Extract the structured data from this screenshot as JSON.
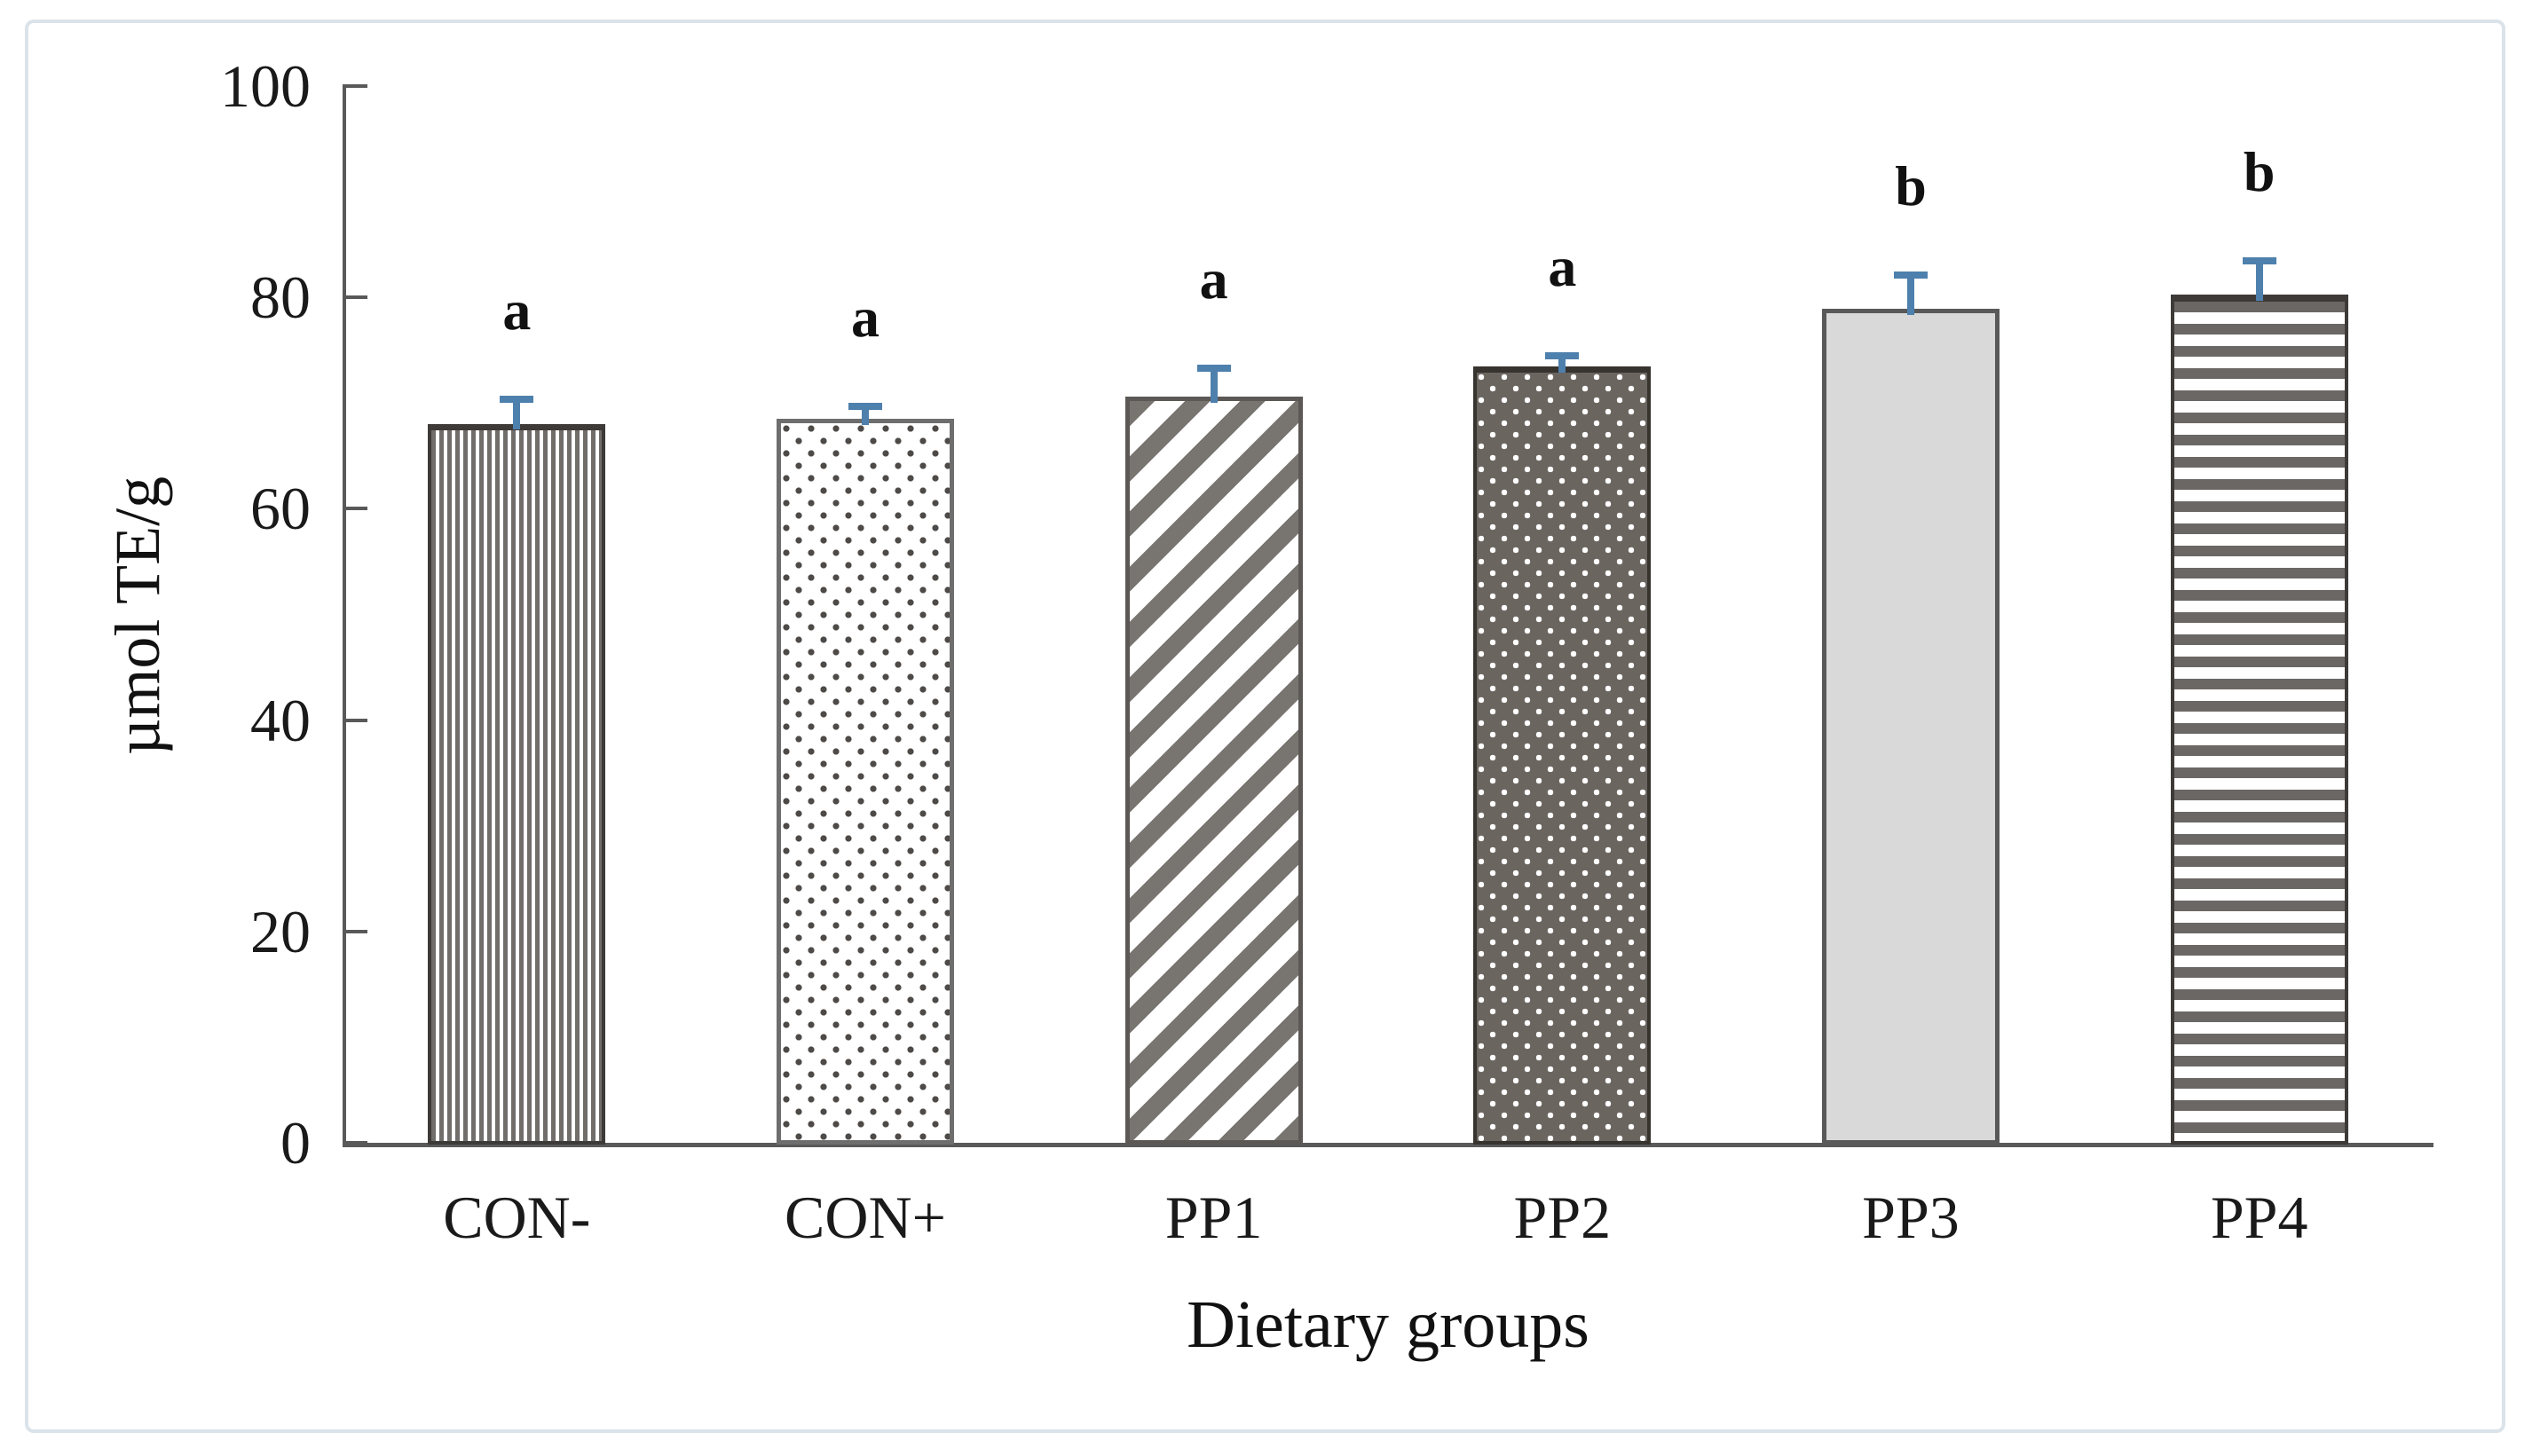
{
  "figure": {
    "background_color": "#ffffff",
    "frame_border_color": "#dbe3ea"
  },
  "axes": {
    "axis_color": "#595959",
    "y_ticks": [
      0,
      20,
      40,
      60,
      80,
      100
    ],
    "tick_label_color": "#1a1a1a"
  },
  "chart_data": {
    "type": "bar",
    "title": "",
    "categories": [
      "CON-",
      "CON+",
      "PP1",
      "PP2",
      "PP3",
      "PP4"
    ],
    "values": [
      67.8,
      68.3,
      70.4,
      73.2,
      78.7,
      80.0
    ],
    "error_plus": [
      2.6,
      1.4,
      2.9,
      1.3,
      3.4,
      3.5
    ],
    "sig_letters": [
      "a",
      "a",
      "a",
      "a",
      "b",
      "b"
    ],
    "bar_patterns": [
      "vertical-lines",
      "light-dots",
      "diagonal-stripes",
      "dark-dots",
      "solid-light-gray",
      "horizontal-lines"
    ],
    "xlabel": "Dietary groups",
    "ylabel": "µmol TE/g",
    "ylim": [
      0,
      100
    ],
    "y_tick_labels": [
      "0",
      "20",
      "40",
      "60",
      "80",
      "100"
    ],
    "grid": "off",
    "legend": "none",
    "error_bar_color": "#4e80ad",
    "pattern_gray": "#6f6a66",
    "solid_fill_color": "#d9d9d9"
  }
}
